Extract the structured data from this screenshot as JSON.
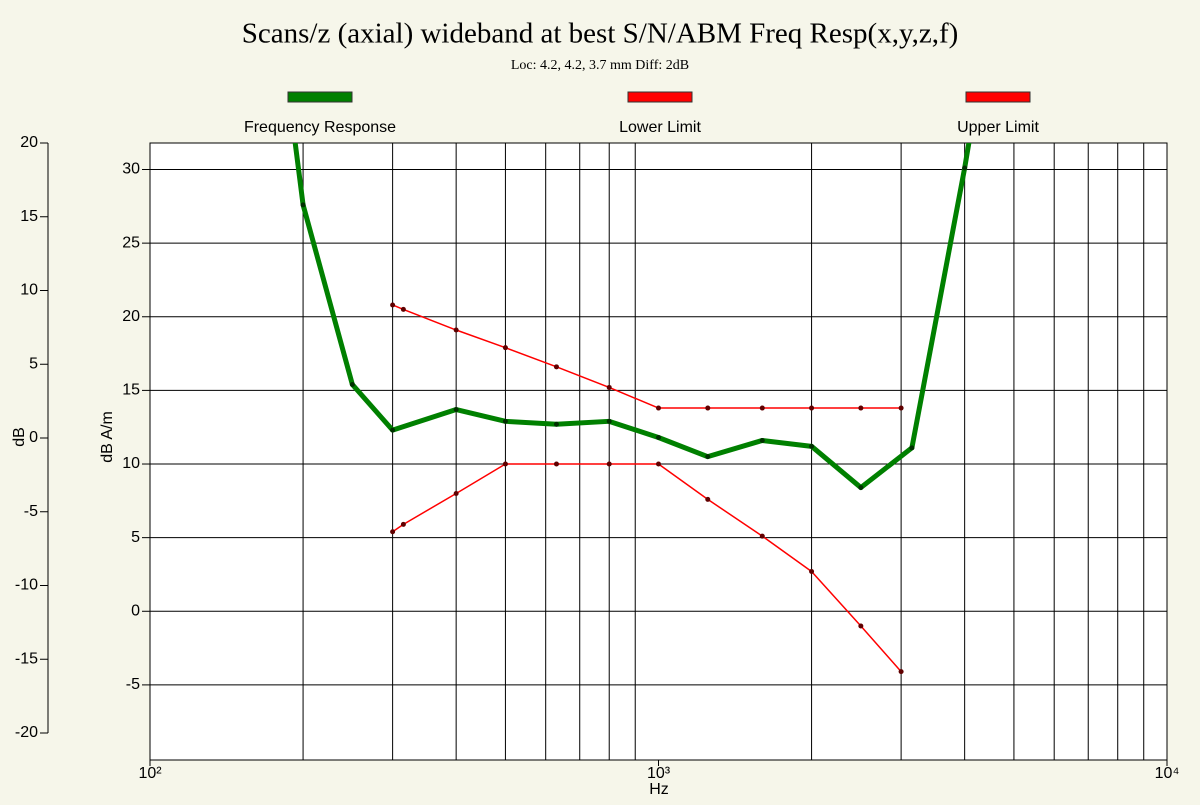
{
  "chart_data": {
    "type": "line",
    "title": "Scans/z (axial) wideband at best S/N/ABM Freq Resp(x,y,z,f)",
    "subtitle": "Loc: 4.2, 4.2, 3.7 mm Diff: 2dB",
    "xlabel": "Hz",
    "ylabel": "dB",
    "y2label": "dB A/m",
    "xscale": "log",
    "xlim": [
      100,
      10000
    ],
    "xticks": [
      {
        "value": 100,
        "label": "10²"
      },
      {
        "value": 1000,
        "label": "10³"
      },
      {
        "value": 10000,
        "label": "10⁴"
      }
    ],
    "xminor": [
      200,
      300,
      400,
      500,
      600,
      700,
      800,
      900,
      2000,
      3000,
      4000,
      5000,
      6000,
      7000,
      8000,
      9000
    ],
    "ylim": [
      -20,
      20
    ],
    "yticks": [
      20,
      15,
      10,
      5,
      0,
      -5,
      -10,
      -15,
      -20
    ],
    "y2lim": [
      -10.1,
      31.8
    ],
    "y2ticks": [
      30,
      25,
      20,
      15,
      10,
      5,
      0,
      -5
    ],
    "grid": true,
    "series": [
      {
        "name": "Frequency Response",
        "color": "#008000",
        "axis": "y2",
        "x": [
          180,
          200,
          250,
          300,
          400,
          500,
          630,
          800,
          1000,
          1250,
          1600,
          2000,
          2500,
          3150,
          4000,
          5000
        ],
        "values": [
          40,
          27.6,
          15.4,
          12.3,
          13.7,
          12.9,
          12.7,
          12.9,
          11.8,
          10.5,
          11.6,
          11.2,
          8.4,
          11.1,
          30.1,
          50
        ]
      },
      {
        "name": "Lower Limit",
        "color": "#ff0000",
        "axis": "y2",
        "x": [
          300,
          315,
          400,
          500,
          630,
          800,
          1000,
          1250,
          1600,
          2000,
          2500,
          3000
        ],
        "values": [
          5.4,
          5.9,
          8.0,
          10.0,
          10.0,
          10.0,
          10.0,
          7.6,
          5.1,
          2.7,
          -1.0,
          -4.1
        ]
      },
      {
        "name": "Upper Limit",
        "color": "#ff0000",
        "axis": "y2",
        "x": [
          300,
          315,
          400,
          500,
          630,
          800,
          1000,
          1250,
          1600,
          2000,
          2500,
          3000
        ],
        "values": [
          20.8,
          20.5,
          19.1,
          17.9,
          16.6,
          15.2,
          13.8,
          13.8,
          13.8,
          13.8,
          13.8,
          13.8
        ]
      }
    ]
  }
}
